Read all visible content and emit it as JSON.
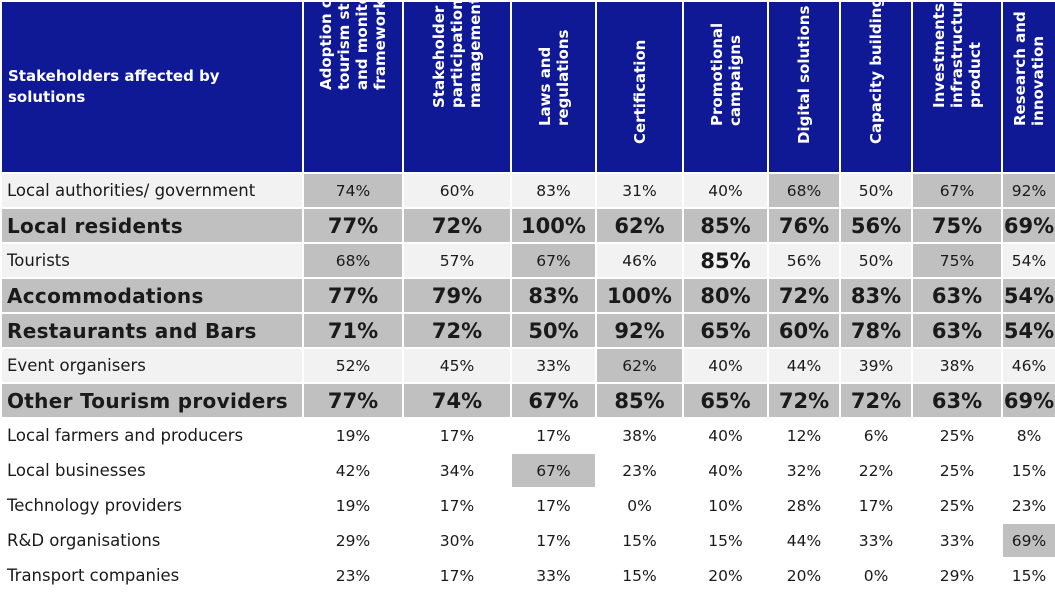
{
  "header": {
    "corner": "Stakeholders affected by solutions",
    "columns": [
      "Adoption of a tourism strategy and monitoring framework",
      "Stakeholder participation and management",
      "Laws and regulations",
      "Certification",
      "Promotional campaigns",
      "Digital solutions",
      "Capacity building",
      "Investments in infrastructure and product",
      "Research and innovation"
    ]
  },
  "rows": [
    {
      "label": "Local authorities/ government",
      "values": [
        "74%",
        "60%",
        "83%",
        "31%",
        "40%",
        "68%",
        "50%",
        "67%",
        "92%"
      ]
    },
    {
      "label": "Local residents",
      "values": [
        "77%",
        "72%",
        "100%",
        "62%",
        "85%",
        "76%",
        "56%",
        "75%",
        "69%"
      ]
    },
    {
      "label": "Tourists",
      "values": [
        "68%",
        "57%",
        "67%",
        "46%",
        "85%",
        "56%",
        "50%",
        "75%",
        "54%"
      ]
    },
    {
      "label": "Accommodations",
      "values": [
        "77%",
        "79%",
        "83%",
        "100%",
        "80%",
        "72%",
        "83%",
        "63%",
        "54%"
      ]
    },
    {
      "label": "Restaurants and Bars",
      "values": [
        "71%",
        "72%",
        "50%",
        "92%",
        "65%",
        "60%",
        "78%",
        "63%",
        "54%"
      ]
    },
    {
      "label": "Event organisers",
      "values": [
        "52%",
        "45%",
        "33%",
        "62%",
        "40%",
        "44%",
        "39%",
        "38%",
        "46%"
      ]
    },
    {
      "label": "Other Tourism providers",
      "values": [
        "77%",
        "74%",
        "67%",
        "85%",
        "65%",
        "72%",
        "72%",
        "63%",
        "69%"
      ]
    },
    {
      "label": "Local farmers and producers",
      "values": [
        "19%",
        "17%",
        "17%",
        "38%",
        "40%",
        "12%",
        "6%",
        "25%",
        "8%"
      ]
    },
    {
      "label": "Local businesses",
      "values": [
        "42%",
        "34%",
        "67%",
        "23%",
        "40%",
        "32%",
        "22%",
        "25%",
        "15%"
      ]
    },
    {
      "label": "Technology providers",
      "values": [
        "19%",
        "17%",
        "17%",
        "0%",
        "10%",
        "28%",
        "17%",
        "25%",
        "23%"
      ]
    },
    {
      "label": "R&D organisations",
      "values": [
        "29%",
        "30%",
        "17%",
        "15%",
        "15%",
        "44%",
        "33%",
        "33%",
        "69%"
      ]
    },
    {
      "label": "Transport companies",
      "values": [
        "23%",
        "17%",
        "33%",
        "15%",
        "20%",
        "20%",
        "0%",
        "29%",
        "15%"
      ]
    }
  ],
  "colors": {
    "header_bg": "#0f1996",
    "header_text": "#ffffff",
    "highlight": "#c0c0c0",
    "stripe": "#f2f2f2"
  }
}
